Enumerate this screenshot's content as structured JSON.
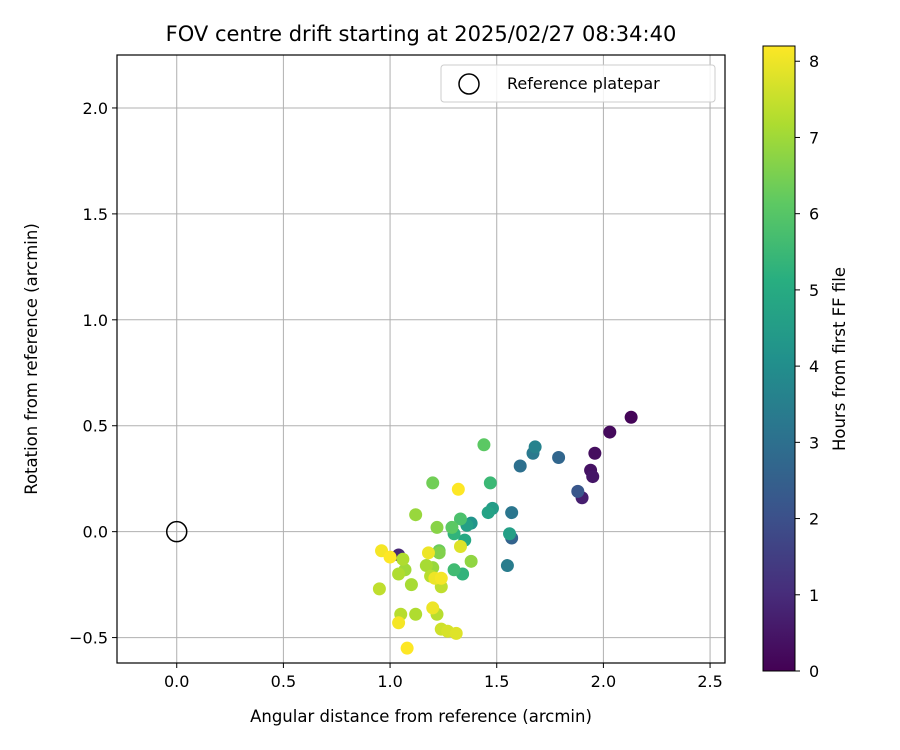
{
  "chart_data": {
    "type": "scatter",
    "title": "FOV centre drift starting at 2025/02/27 08:34:40",
    "xlabel": "Angular distance from reference (arcmin)",
    "ylabel": "Rotation from reference (arcmin)",
    "xlim": [
      -0.28,
      2.57
    ],
    "ylim": [
      -0.62,
      2.25
    ],
    "xticks": [
      0.0,
      0.5,
      1.0,
      1.5,
      2.0,
      2.5
    ],
    "xtick_labels": [
      "0.0",
      "0.5",
      "1.0",
      "1.5",
      "2.0",
      "2.5"
    ],
    "yticks": [
      -0.5,
      0.0,
      0.5,
      1.0,
      1.5,
      2.0
    ],
    "ytick_labels": [
      "−0.5",
      "0.0",
      "0.5",
      "1.0",
      "1.5",
      "2.0"
    ],
    "grid": true,
    "legend": {
      "placement": "top-right",
      "label": "Reference platepar",
      "marker": "open-circle"
    },
    "reference_point": {
      "x": 0.0,
      "y": 0.0
    },
    "colorbar": {
      "label": "Hours from first FF file",
      "colormap": "viridis",
      "range": [
        0,
        8.2
      ],
      "ticks": [
        0,
        1,
        2,
        3,
        4,
        5,
        6,
        7,
        8
      ],
      "tick_labels": [
        "0",
        "1",
        "2",
        "3",
        "4",
        "5",
        "6",
        "7",
        "8"
      ]
    },
    "points": [
      {
        "x": 2.13,
        "y": 0.54,
        "c": 0.1
      },
      {
        "x": 2.03,
        "y": 0.47,
        "c": 0.2
      },
      {
        "x": 1.96,
        "y": 0.37,
        "c": 0.3
      },
      {
        "x": 1.94,
        "y": 0.29,
        "c": 0.4
      },
      {
        "x": 1.95,
        "y": 0.26,
        "c": 0.5
      },
      {
        "x": 1.9,
        "y": 0.16,
        "c": 0.7
      },
      {
        "x": 1.04,
        "y": -0.11,
        "c": 0.9
      },
      {
        "x": 1.88,
        "y": 0.19,
        "c": 2.2
      },
      {
        "x": 1.79,
        "y": 0.35,
        "c": 2.7
      },
      {
        "x": 1.67,
        "y": 0.37,
        "c": 3.3
      },
      {
        "x": 1.68,
        "y": 0.4,
        "c": 3.6
      },
      {
        "x": 1.61,
        "y": 0.31,
        "c": 3.0
      },
      {
        "x": 1.57,
        "y": -0.03,
        "c": 2.6
      },
      {
        "x": 1.57,
        "y": 0.09,
        "c": 3.2
      },
      {
        "x": 1.55,
        "y": -0.16,
        "c": 3.4
      },
      {
        "x": 1.56,
        "y": -0.01,
        "c": 4.6
      },
      {
        "x": 1.48,
        "y": 0.11,
        "c": 4.5
      },
      {
        "x": 1.46,
        "y": 0.09,
        "c": 4.7
      },
      {
        "x": 1.38,
        "y": 0.04,
        "c": 4.2
      },
      {
        "x": 1.36,
        "y": 0.03,
        "c": 4.6
      },
      {
        "x": 1.35,
        "y": -0.04,
        "c": 4.9
      },
      {
        "x": 1.3,
        "y": -0.01,
        "c": 5.3
      },
      {
        "x": 1.34,
        "y": -0.2,
        "c": 5.3
      },
      {
        "x": 1.3,
        "y": -0.18,
        "c": 5.6
      },
      {
        "x": 1.47,
        "y": 0.23,
        "c": 5.5
      },
      {
        "x": 1.33,
        "y": 0.06,
        "c": 5.8
      },
      {
        "x": 1.29,
        "y": 0.02,
        "c": 6.1
      },
      {
        "x": 1.44,
        "y": 0.41,
        "c": 6.1
      },
      {
        "x": 1.2,
        "y": 0.23,
        "c": 6.4
      },
      {
        "x": 1.23,
        "y": -0.09,
        "c": 6.3
      },
      {
        "x": 1.23,
        "y": -0.1,
        "c": 6.6
      },
      {
        "x": 1.38,
        "y": -0.14,
        "c": 6.8
      },
      {
        "x": 1.22,
        "y": 0.02,
        "c": 6.7
      },
      {
        "x": 1.2,
        "y": -0.17,
        "c": 6.9
      },
      {
        "x": 1.17,
        "y": -0.16,
        "c": 7.1
      },
      {
        "x": 1.12,
        "y": 0.08,
        "c": 6.9
      },
      {
        "x": 1.07,
        "y": -0.18,
        "c": 7.0
      },
      {
        "x": 1.06,
        "y": -0.13,
        "c": 7.2
      },
      {
        "x": 1.04,
        "y": -0.2,
        "c": 7.2
      },
      {
        "x": 1.1,
        "y": -0.25,
        "c": 7.1
      },
      {
        "x": 1.19,
        "y": -0.21,
        "c": 7.3
      },
      {
        "x": 1.24,
        "y": -0.26,
        "c": 7.4
      },
      {
        "x": 1.12,
        "y": -0.39,
        "c": 7.2
      },
      {
        "x": 1.05,
        "y": -0.39,
        "c": 7.3
      },
      {
        "x": 1.22,
        "y": -0.39,
        "c": 7.3
      },
      {
        "x": 0.95,
        "y": -0.27,
        "c": 7.4
      },
      {
        "x": 1.24,
        "y": -0.46,
        "c": 7.6
      },
      {
        "x": 1.27,
        "y": -0.47,
        "c": 7.7
      },
      {
        "x": 1.31,
        "y": -0.48,
        "c": 7.8
      },
      {
        "x": 1.33,
        "y": -0.07,
        "c": 7.8
      },
      {
        "x": 1.21,
        "y": -0.22,
        "c": 8.0
      },
      {
        "x": 1.24,
        "y": -0.22,
        "c": 8.1
      },
      {
        "x": 1.18,
        "y": -0.1,
        "c": 8.0
      },
      {
        "x": 0.96,
        "y": -0.09,
        "c": 8.1
      },
      {
        "x": 1.0,
        "y": -0.12,
        "c": 8.2
      },
      {
        "x": 1.2,
        "y": -0.36,
        "c": 8.0
      },
      {
        "x": 1.04,
        "y": -0.43,
        "c": 8.1
      },
      {
        "x": 1.08,
        "y": -0.55,
        "c": 8.2
      },
      {
        "x": 1.32,
        "y": 0.2,
        "c": 8.2
      }
    ]
  }
}
